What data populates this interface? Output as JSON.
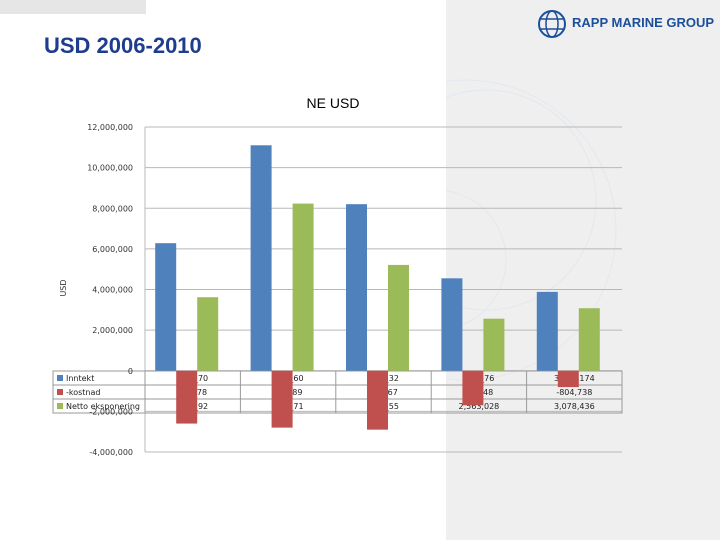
{
  "page": {
    "title": "USD 2006-2010",
    "logo_text": "RAPP MARINE GROUP"
  },
  "colors": {
    "title": "#1f3d8f",
    "logo": "#1c4f9a",
    "panel": "#efefef"
  },
  "chart_data": {
    "type": "bar",
    "title": "NE USD",
    "ylabel": "USD",
    "xlabel": "",
    "ylim": [
      -4000000,
      12000000
    ],
    "yticks": [
      12000000,
      10000000,
      8000000,
      6000000,
      4000000,
      2000000,
      0,
      -2000000,
      -4000000
    ],
    "ytick_labels": [
      "12,000,000",
      "10,000,000",
      "8,000,000",
      "6,000,000",
      "4,000,000",
      "2,000,000",
      "0",
      "-2,000,000",
      "-4,000,000"
    ],
    "grid": true,
    "legend_position": "bottom-left, in data table",
    "categories": [
      "",
      "",
      "",
      "",
      ""
    ],
    "series": [
      {
        "name": "Inntekt",
        "color": "#4f81bd",
        "values": [
          6280000,
          11100000,
          8200000,
          4550000,
          3883174
        ],
        "labels": [
          "6,2__70",
          "11,__60",
          "8,1__32",
          "4,5__76",
          "3,883,174"
        ]
      },
      {
        "name": "-kostnad",
        "color": "#c0504d",
        "values": [
          -2600000,
          -2800000,
          -2900000,
          -1700000,
          -804738
        ],
        "labels": [
          "-2,__78",
          "-2,__89",
          "-2,__67",
          "-1,__48",
          "-804,738"
        ]
      },
      {
        "name": "Netto eksponering",
        "color": "#9bbb59",
        "values": [
          3620000,
          8230000,
          5210000,
          2563028,
          3078436
        ],
        "labels": [
          "3,6__92",
          "8,2__71",
          "5,2__55",
          "2,563,028",
          "3,078,436"
        ]
      }
    ]
  }
}
